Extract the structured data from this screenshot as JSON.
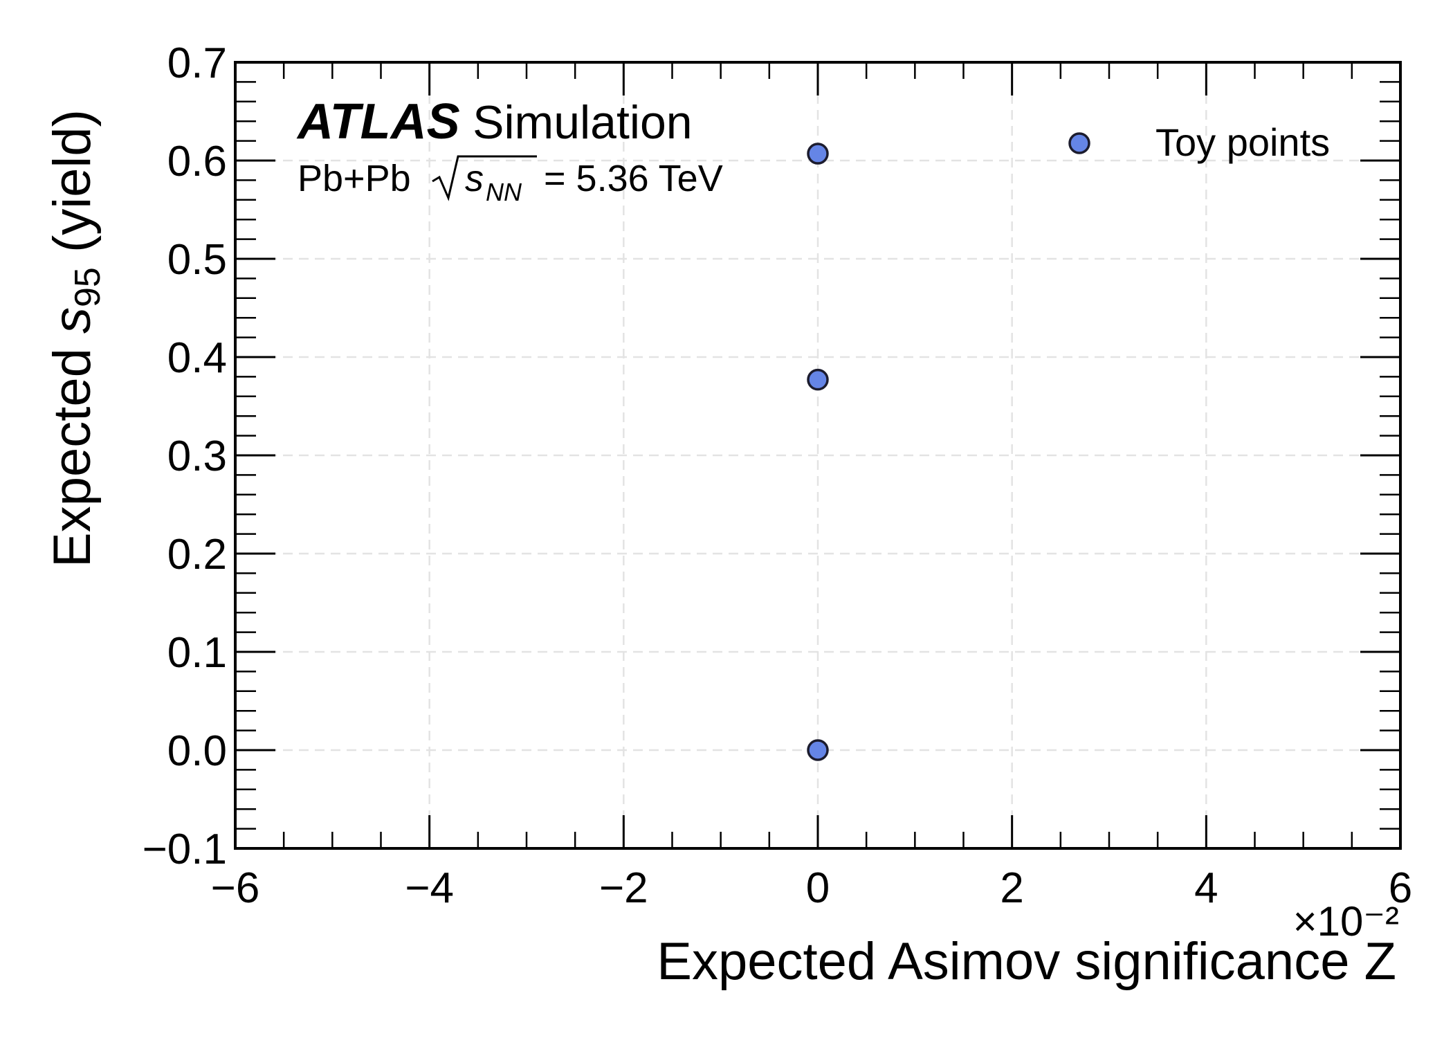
{
  "chart_data": {
    "type": "scatter",
    "xlabel": "Expected Asimov significance Z",
    "x_multiplier": "×10⁻²",
    "ylabel_prefix": "Expected ",
    "ylabel_symbol": "s",
    "ylabel_subscript": "95",
    "ylabel_suffix": " (yield)",
    "xlim": [
      -6,
      6
    ],
    "ylim": [
      -0.1,
      0.7
    ],
    "x_ticks": [
      -6,
      -4,
      -2,
      0,
      2,
      4,
      6
    ],
    "x_tick_labels": [
      "−6",
      "−4",
      "−2",
      "0",
      "2",
      "4",
      "6"
    ],
    "y_ticks": [
      -0.1,
      0.0,
      0.1,
      0.2,
      0.3,
      0.4,
      0.5,
      0.6,
      0.7
    ],
    "y_tick_labels": [
      "−0.1",
      "0.0",
      "0.1",
      "0.2",
      "0.3",
      "0.4",
      "0.5",
      "0.6",
      "0.7"
    ],
    "grid": true,
    "legend_position": "top-right",
    "experiment_label": "ATLAS",
    "experiment_sublabel": "Simulation",
    "collision_system": "Pb+Pb",
    "energy_label": "= 5.36 TeV",
    "series": [
      {
        "name": "Toy points",
        "color": "#6585e6",
        "edge_color": "#1c1c2e",
        "points": [
          {
            "x": 0,
            "y": 0.607
          },
          {
            "x": 0,
            "y": 0.377
          },
          {
            "x": 0,
            "y": 0.0
          }
        ]
      }
    ]
  }
}
